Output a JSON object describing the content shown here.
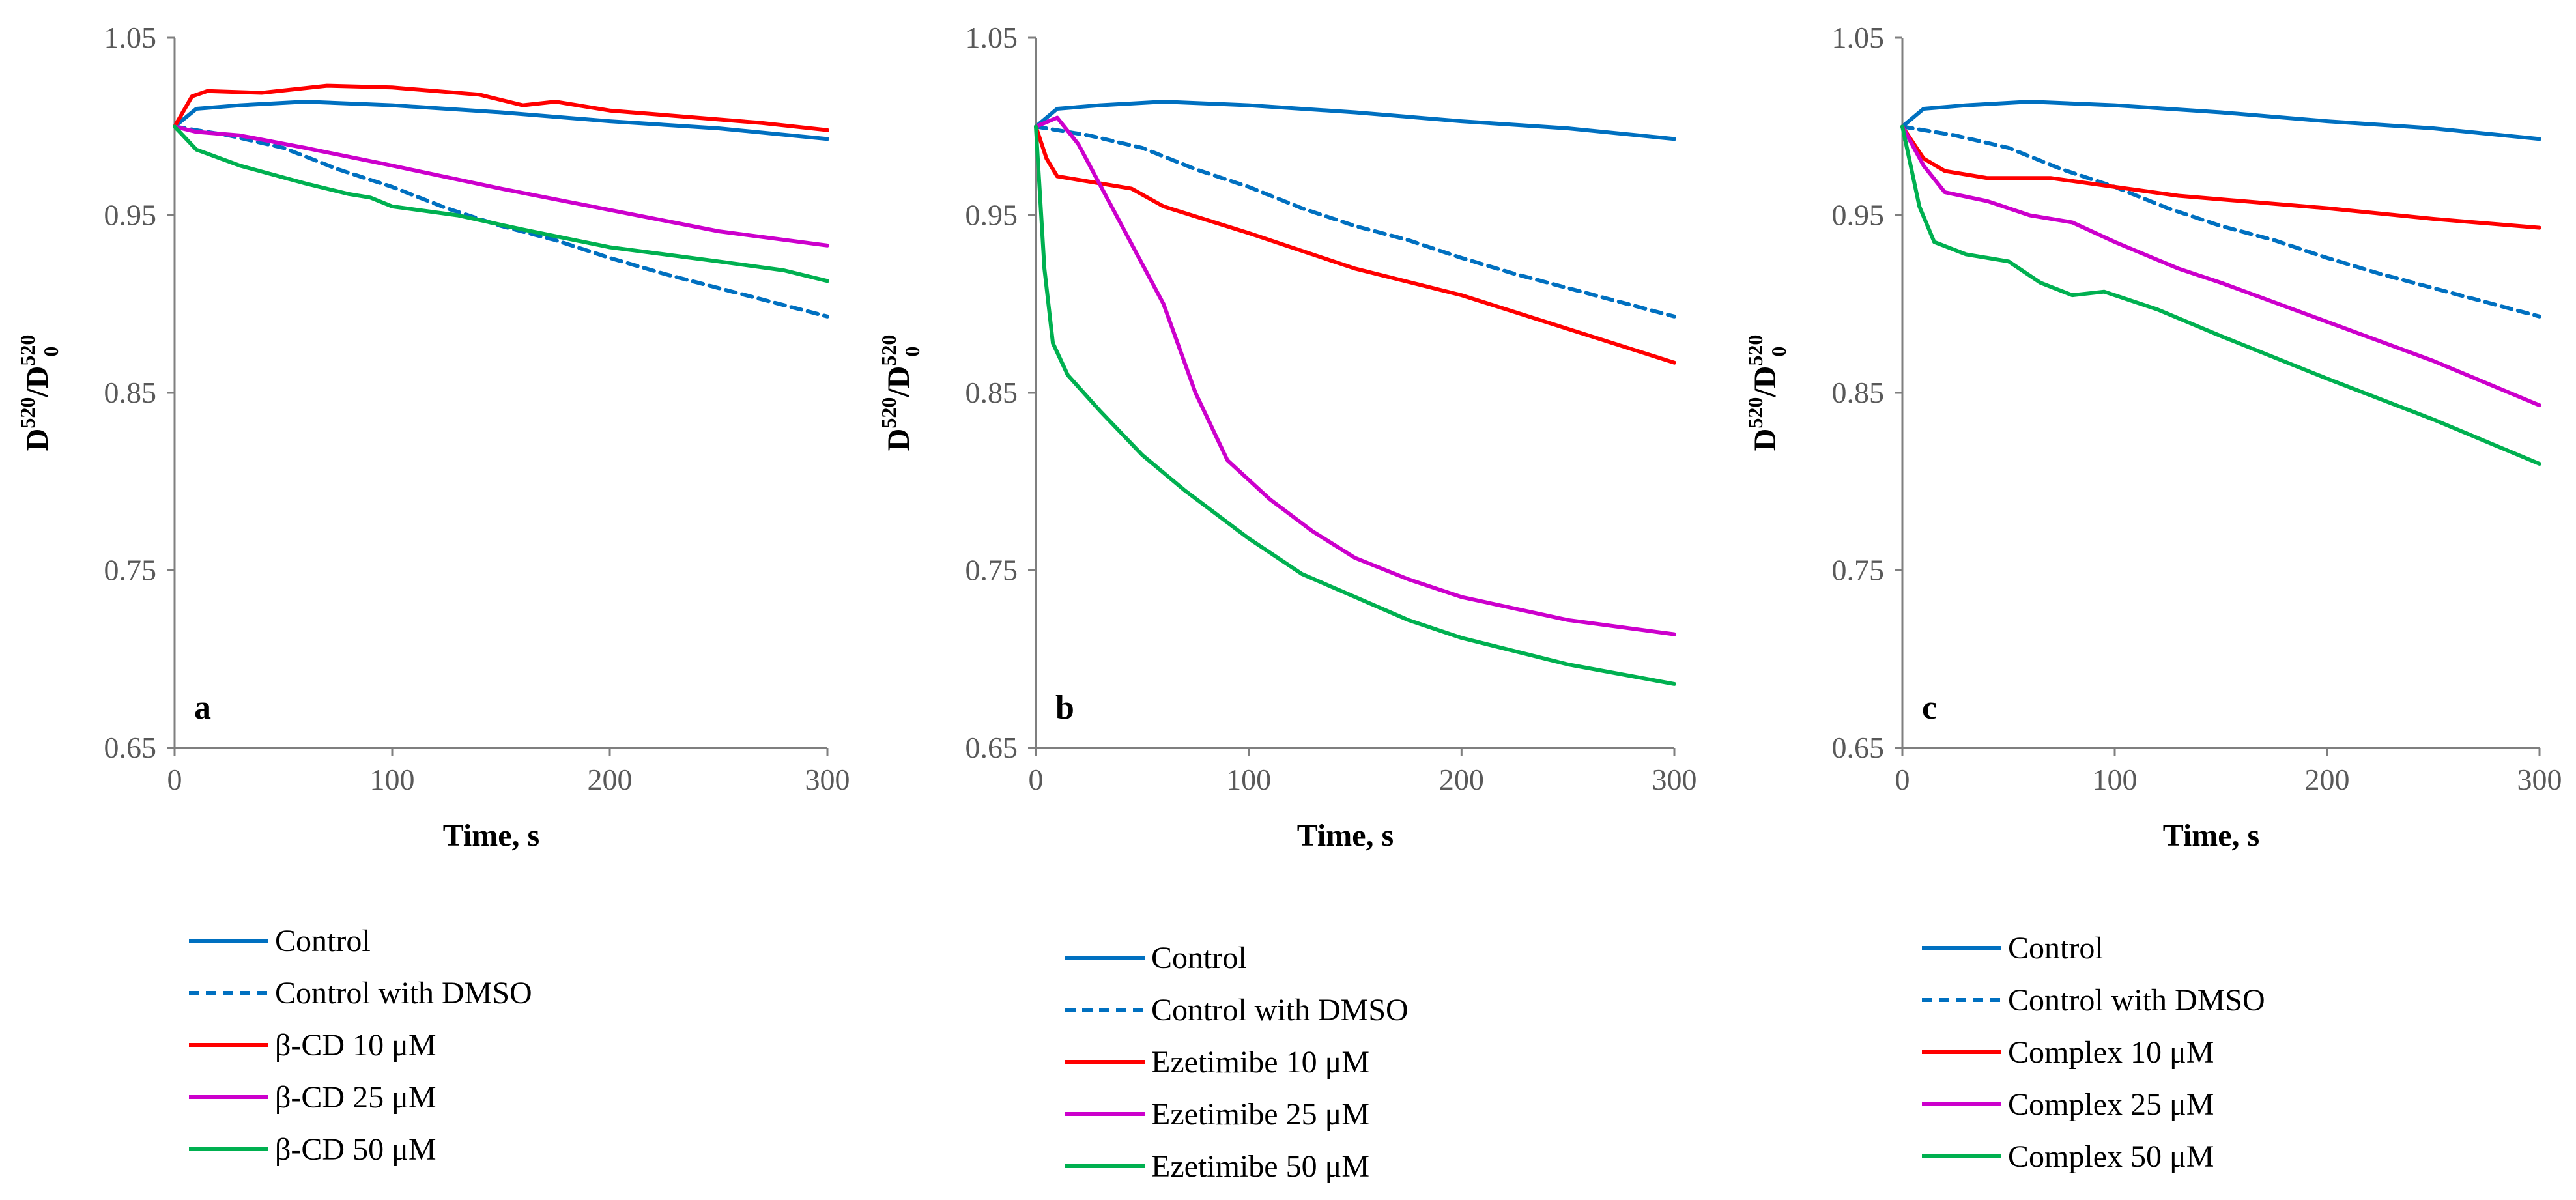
{
  "chart_data": [
    {
      "type": "line",
      "panel_label": "a",
      "xlabel": "Time, s",
      "ylabel": "D520/D5200",
      "xlim": [
        0,
        300
      ],
      "ylim": [
        0.65,
        1.05
      ],
      "xticks": [
        0,
        100,
        200,
        300
      ],
      "yticks": [
        0.65,
        0.75,
        0.85,
        0.95,
        1.05
      ],
      "xtick_labels": [
        "0",
        "100",
        "200",
        "300"
      ],
      "ytick_labels": [
        "0.65",
        "0.75",
        "0.85",
        "0.95",
        "1.05"
      ],
      "grid": false,
      "legend_position": "bottom",
      "series": [
        {
          "name": "Control",
          "color": "#0070C0",
          "dash": "solid",
          "points": [
            [
              0,
              1.0
            ],
            [
              10,
              1.01
            ],
            [
              30,
              1.012
            ],
            [
              60,
              1.014
            ],
            [
              100,
              1.012
            ],
            [
              150,
              1.008
            ],
            [
              200,
              1.003
            ],
            [
              250,
              0.999
            ],
            [
              300,
              0.993
            ]
          ]
        },
        {
          "name": "Control with DMSO",
          "color": "#0070C0",
          "dash": "dashed",
          "points": [
            [
              0,
              1.0
            ],
            [
              25,
              0.995
            ],
            [
              50,
              0.988
            ],
            [
              75,
              0.976
            ],
            [
              100,
              0.966
            ],
            [
              125,
              0.954
            ],
            [
              150,
              0.944
            ],
            [
              175,
              0.936
            ],
            [
              200,
              0.926
            ],
            [
              225,
              0.917
            ],
            [
              250,
              0.909
            ],
            [
              275,
              0.901
            ],
            [
              300,
              0.893
            ]
          ]
        },
        {
          "name": "β-CD 10 μM",
          "color": "#FF0000",
          "dash": "solid",
          "points": [
            [
              0,
              1.0
            ],
            [
              8,
              1.017
            ],
            [
              15,
              1.02
            ],
            [
              40,
              1.019
            ],
            [
              70,
              1.023
            ],
            [
              100,
              1.022
            ],
            [
              140,
              1.018
            ],
            [
              160,
              1.012
            ],
            [
              175,
              1.014
            ],
            [
              200,
              1.009
            ],
            [
              240,
              1.005
            ],
            [
              270,
              1.002
            ],
            [
              300,
              0.998
            ]
          ]
        },
        {
          "name": "β-CD 25 μM",
          "color": "#CC00CC",
          "dash": "solid",
          "points": [
            [
              0,
              1.0
            ],
            [
              10,
              0.997
            ],
            [
              30,
              0.995
            ],
            [
              60,
              0.988
            ],
            [
              100,
              0.978
            ],
            [
              150,
              0.965
            ],
            [
              200,
              0.953
            ],
            [
              250,
              0.941
            ],
            [
              300,
              0.933
            ]
          ]
        },
        {
          "name": "β-CD 50 μM",
          "color": "#00B050",
          "dash": "solid",
          "points": [
            [
              0,
              1.0
            ],
            [
              10,
              0.987
            ],
            [
              30,
              0.978
            ],
            [
              60,
              0.968
            ],
            [
              80,
              0.962
            ],
            [
              90,
              0.96
            ],
            [
              100,
              0.955
            ],
            [
              130,
              0.95
            ],
            [
              160,
              0.942
            ],
            [
              200,
              0.932
            ],
            [
              250,
              0.924
            ],
            [
              280,
              0.919
            ],
            [
              300,
              0.913
            ]
          ]
        }
      ],
      "legend": [
        "Control",
        "Control with DMSO",
        "β-CD 10 μM",
        "β-CD 25 μM",
        "β-CD 50 μM"
      ]
    },
    {
      "type": "line",
      "panel_label": "b",
      "xlabel": "Time, s",
      "ylabel": "D520/D5200",
      "xlim": [
        0,
        300
      ],
      "ylim": [
        0.65,
        1.05
      ],
      "xticks": [
        0,
        100,
        200,
        300
      ],
      "yticks": [
        0.65,
        0.75,
        0.85,
        0.95,
        1.05
      ],
      "xtick_labels": [
        "0",
        "100",
        "200",
        "300"
      ],
      "ytick_labels": [
        "0.65",
        "0.75",
        "0.85",
        "0.95",
        "1.05"
      ],
      "grid": false,
      "legend_position": "bottom",
      "series": [
        {
          "name": "Control",
          "color": "#0070C0",
          "dash": "solid",
          "points": [
            [
              0,
              1.0
            ],
            [
              10,
              1.01
            ],
            [
              30,
              1.012
            ],
            [
              60,
              1.014
            ],
            [
              100,
              1.012
            ],
            [
              150,
              1.008
            ],
            [
              200,
              1.003
            ],
            [
              250,
              0.999
            ],
            [
              300,
              0.993
            ]
          ]
        },
        {
          "name": "Control with DMSO",
          "color": "#0070C0",
          "dash": "dashed",
          "points": [
            [
              0,
              1.0
            ],
            [
              25,
              0.995
            ],
            [
              50,
              0.988
            ],
            [
              75,
              0.976
            ],
            [
              100,
              0.966
            ],
            [
              125,
              0.954
            ],
            [
              150,
              0.944
            ],
            [
              175,
              0.936
            ],
            [
              200,
              0.926
            ],
            [
              225,
              0.917
            ],
            [
              250,
              0.909
            ],
            [
              275,
              0.901
            ],
            [
              300,
              0.893
            ]
          ]
        },
        {
          "name": "Ezetimibe 10 μM",
          "color": "#FF0000",
          "dash": "solid",
          "points": [
            [
              0,
              1.0
            ],
            [
              5,
              0.982
            ],
            [
              10,
              0.972
            ],
            [
              20,
              0.97
            ],
            [
              45,
              0.965
            ],
            [
              60,
              0.955
            ],
            [
              100,
              0.94
            ],
            [
              150,
              0.92
            ],
            [
              200,
              0.905
            ],
            [
              250,
              0.886
            ],
            [
              300,
              0.867
            ]
          ]
        },
        {
          "name": "Ezetimibe 25 μM",
          "color": "#CC00CC",
          "dash": "solid",
          "points": [
            [
              0,
              1.0
            ],
            [
              10,
              1.005
            ],
            [
              20,
              0.99
            ],
            [
              40,
              0.945
            ],
            [
              60,
              0.9
            ],
            [
              75,
              0.85
            ],
            [
              90,
              0.812
            ],
            [
              110,
              0.79
            ],
            [
              130,
              0.772
            ],
            [
              150,
              0.757
            ],
            [
              175,
              0.745
            ],
            [
              200,
              0.735
            ],
            [
              250,
              0.722
            ],
            [
              300,
              0.714
            ]
          ]
        },
        {
          "name": "Ezetimibe 50 μM",
          "color": "#00B050",
          "dash": "solid",
          "points": [
            [
              0,
              1.0
            ],
            [
              4,
              0.92
            ],
            [
              8,
              0.878
            ],
            [
              15,
              0.86
            ],
            [
              30,
              0.84
            ],
            [
              50,
              0.815
            ],
            [
              70,
              0.795
            ],
            [
              100,
              0.768
            ],
            [
              125,
              0.748
            ],
            [
              150,
              0.735
            ],
            [
              175,
              0.722
            ],
            [
              200,
              0.712
            ],
            [
              250,
              0.697
            ],
            [
              300,
              0.686
            ]
          ]
        }
      ],
      "legend": [
        "Control",
        "Control with DMSO",
        "Ezetimibe 10 μM",
        "Ezetimibe 25 μM",
        "Ezetimibe 50 μM"
      ]
    },
    {
      "type": "line",
      "panel_label": "c",
      "xlabel": "Time, s",
      "ylabel": "D520/D5200",
      "xlim": [
        0,
        300
      ],
      "ylim": [
        0.65,
        1.05
      ],
      "xticks": [
        0,
        100,
        200,
        300
      ],
      "yticks": [
        0.65,
        0.75,
        0.85,
        0.95,
        1.05
      ],
      "xtick_labels": [
        "0",
        "100",
        "200",
        "300"
      ],
      "ytick_labels": [
        "0.65",
        "0.75",
        "0.85",
        "0.95",
        "1.05"
      ],
      "grid": false,
      "legend_position": "bottom",
      "series": [
        {
          "name": "Control",
          "color": "#0070C0",
          "dash": "solid",
          "points": [
            [
              0,
              1.0
            ],
            [
              10,
              1.01
            ],
            [
              30,
              1.012
            ],
            [
              60,
              1.014
            ],
            [
              100,
              1.012
            ],
            [
              150,
              1.008
            ],
            [
              200,
              1.003
            ],
            [
              250,
              0.999
            ],
            [
              300,
              0.993
            ]
          ]
        },
        {
          "name": "Control with DMSO",
          "color": "#0070C0",
          "dash": "dashed",
          "points": [
            [
              0,
              1.0
            ],
            [
              25,
              0.995
            ],
            [
              50,
              0.988
            ],
            [
              75,
              0.976
            ],
            [
              100,
              0.966
            ],
            [
              125,
              0.954
            ],
            [
              150,
              0.944
            ],
            [
              175,
              0.936
            ],
            [
              200,
              0.926
            ],
            [
              225,
              0.917
            ],
            [
              250,
              0.909
            ],
            [
              275,
              0.901
            ],
            [
              300,
              0.893
            ]
          ]
        },
        {
          "name": "Complex 10 μM",
          "color": "#FF0000",
          "dash": "solid",
          "points": [
            [
              0,
              1.0
            ],
            [
              10,
              0.982
            ],
            [
              20,
              0.975
            ],
            [
              40,
              0.971
            ],
            [
              70,
              0.971
            ],
            [
              100,
              0.966
            ],
            [
              130,
              0.961
            ],
            [
              150,
              0.959
            ],
            [
              200,
              0.954
            ],
            [
              250,
              0.948
            ],
            [
              300,
              0.943
            ]
          ]
        },
        {
          "name": "Complex 25 μM",
          "color": "#CC00CC",
          "dash": "solid",
          "points": [
            [
              0,
              1.0
            ],
            [
              10,
              0.978
            ],
            [
              20,
              0.963
            ],
            [
              40,
              0.958
            ],
            [
              60,
              0.95
            ],
            [
              80,
              0.946
            ],
            [
              100,
              0.935
            ],
            [
              130,
              0.92
            ],
            [
              150,
              0.912
            ],
            [
              200,
              0.89
            ],
            [
              250,
              0.868
            ],
            [
              300,
              0.843
            ]
          ]
        },
        {
          "name": "Complex 50 μM",
          "color": "#00B050",
          "dash": "solid",
          "points": [
            [
              0,
              1.0
            ],
            [
              8,
              0.955
            ],
            [
              15,
              0.935
            ],
            [
              30,
              0.928
            ],
            [
              50,
              0.924
            ],
            [
              65,
              0.912
            ],
            [
              80,
              0.905
            ],
            [
              95,
              0.907
            ],
            [
              120,
              0.897
            ],
            [
              150,
              0.882
            ],
            [
              200,
              0.858
            ],
            [
              250,
              0.835
            ],
            [
              300,
              0.81
            ]
          ]
        }
      ],
      "legend": [
        "Control",
        "Control with DMSO",
        "Complex 10 μM",
        "Complex 25 μM",
        "Complex 50 μM"
      ]
    }
  ]
}
